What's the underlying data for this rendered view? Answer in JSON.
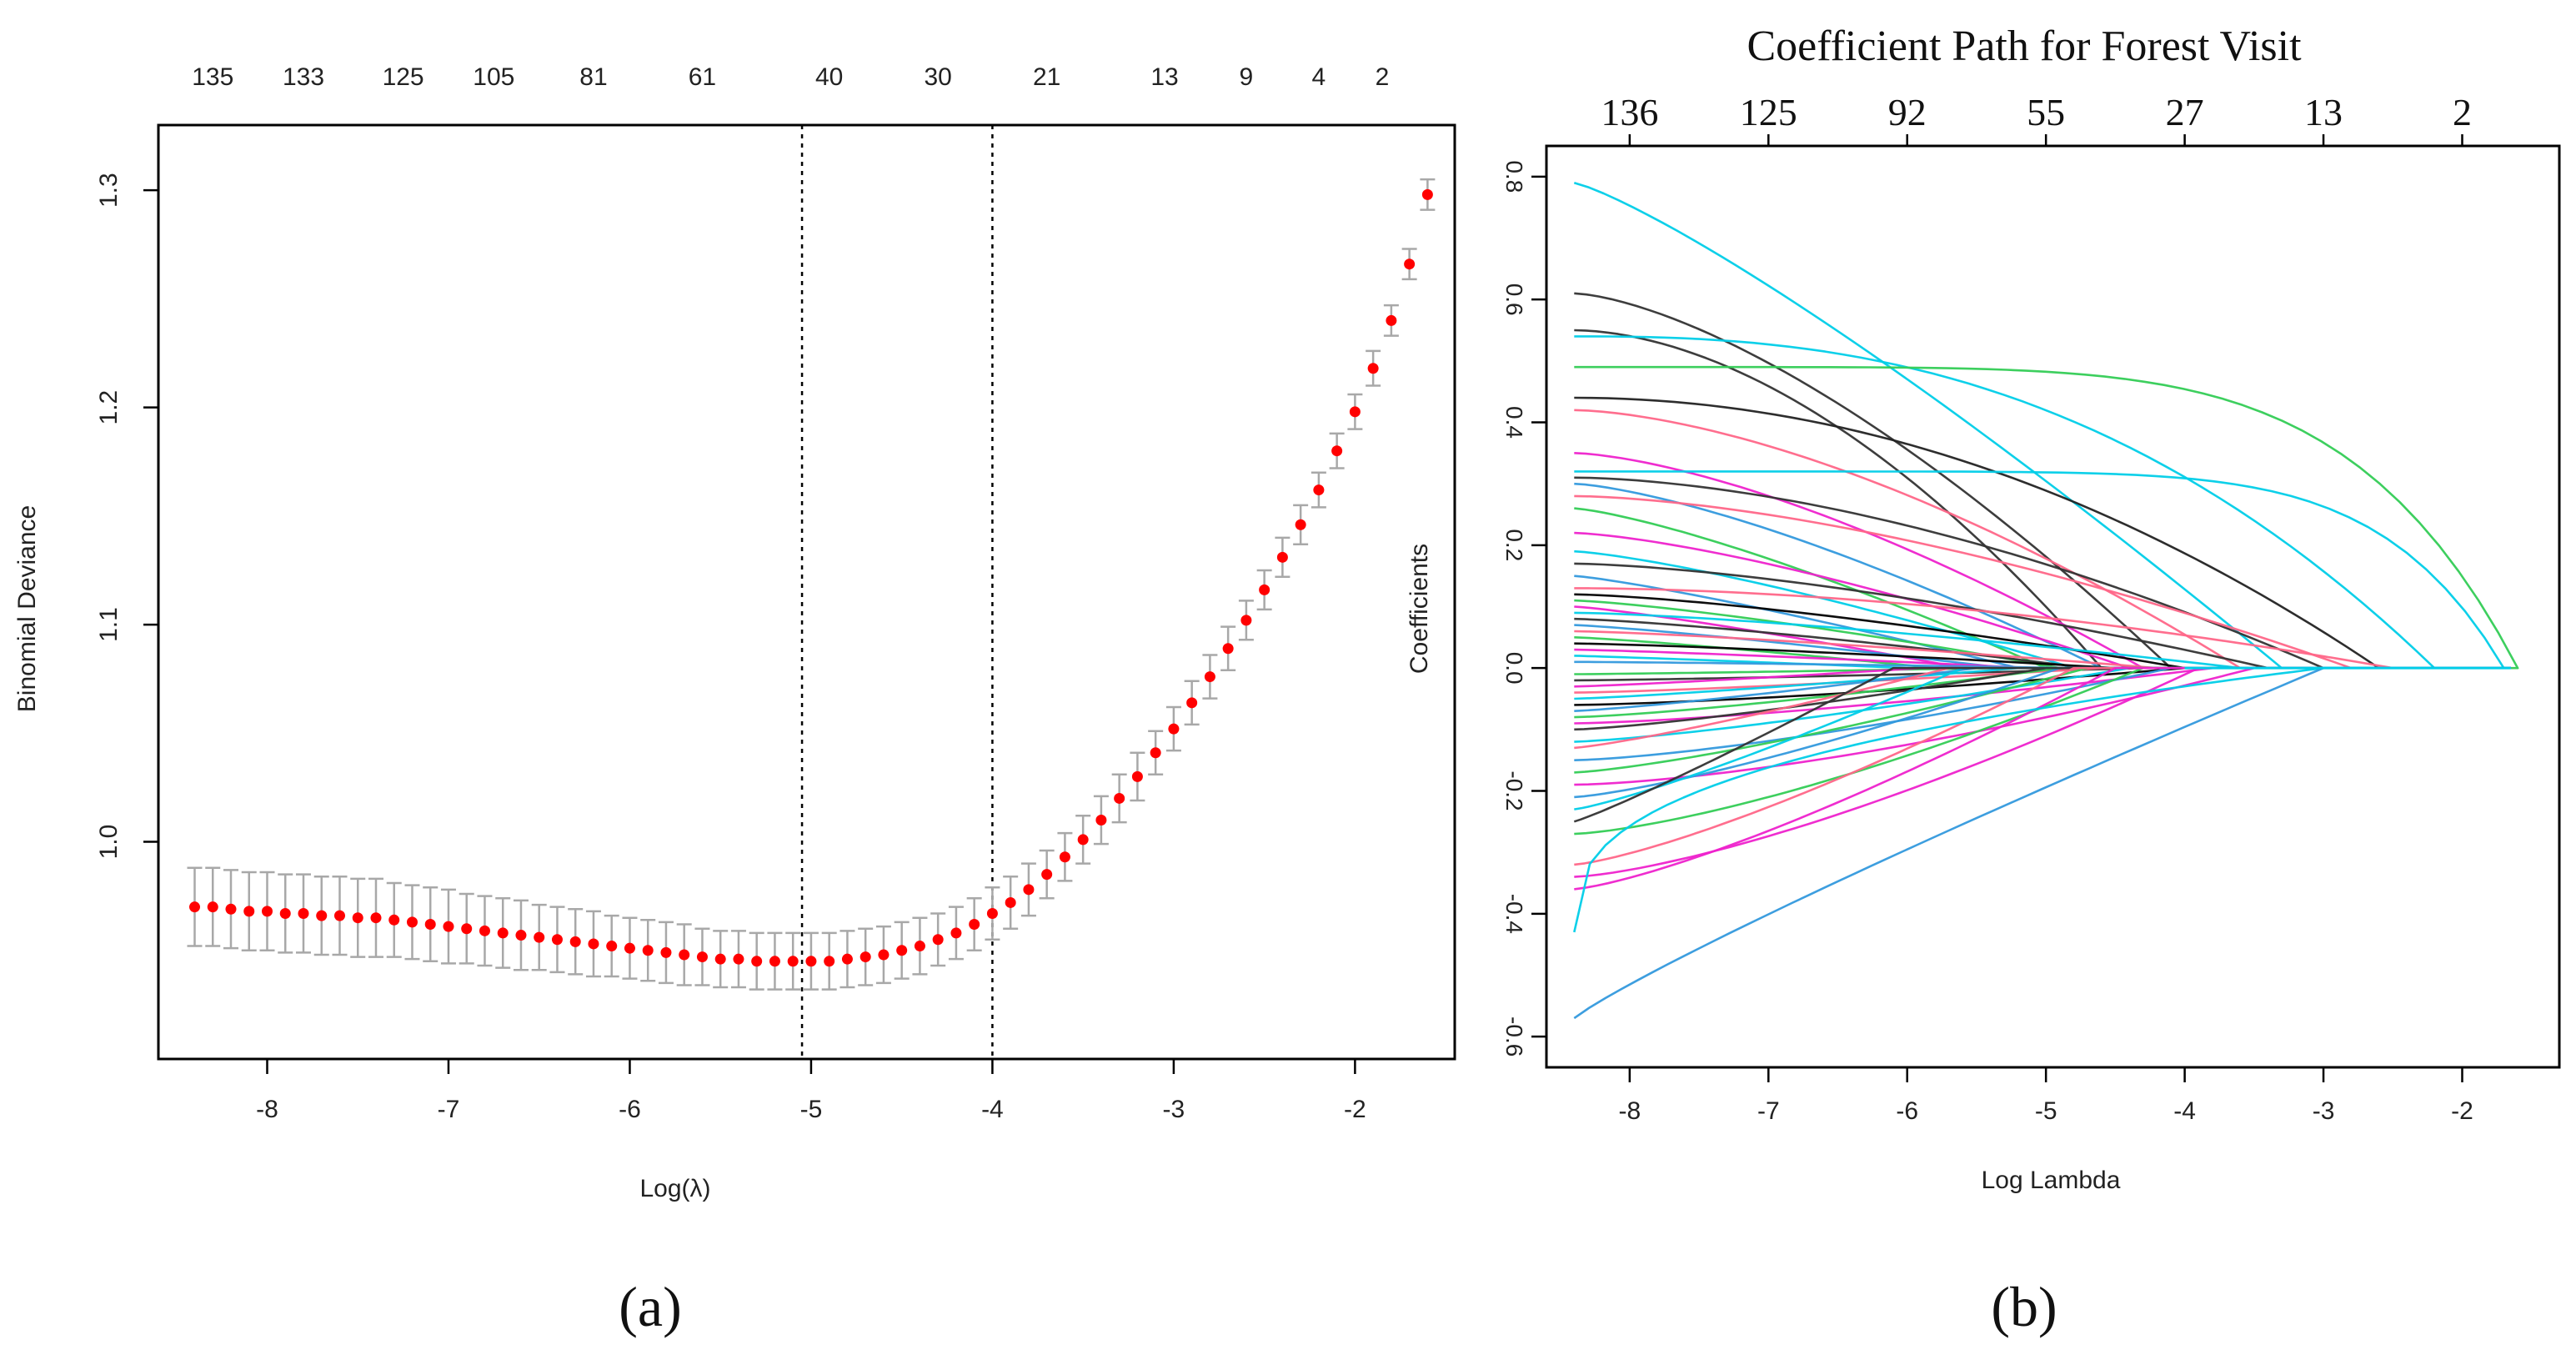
{
  "chart_data": [
    {
      "type": "scatter",
      "panel_label": "(a)",
      "title": "",
      "xlabel": "Log(λ)",
      "ylabel": "Binomial Deviance",
      "xlim": [
        -8.6,
        -1.45
      ],
      "ylim": [
        0.9,
        1.33
      ],
      "xticks": [
        -8,
        -7,
        -6,
        -5,
        -4,
        -3,
        -2
      ],
      "yticks": [
        1.0,
        1.1,
        1.2,
        1.3
      ],
      "ytick_labels": [
        "1.0",
        "1.1",
        "1.2",
        "1.3"
      ],
      "top_axis_labels": [
        "135",
        "133",
        "125",
        "105",
        "81",
        "61",
        "40",
        "30",
        "21",
        "13",
        "9",
        "4",
        "2"
      ],
      "top_axis_x": [
        -8.3,
        -7.8,
        -7.25,
        -6.75,
        -6.2,
        -5.6,
        -4.9,
        -4.3,
        -3.7,
        -3.05,
        -2.6,
        -2.2,
        -1.85
      ],
      "vlines": [
        -5.05,
        -4.0
      ],
      "series": [
        {
          "name": "cv-deviance",
          "x": [
            -8.4,
            -8.3,
            -8.2,
            -8.1,
            -8.0,
            -7.9,
            -7.8,
            -7.7,
            -7.6,
            -7.5,
            -7.4,
            -7.3,
            -7.2,
            -7.1,
            -7.0,
            -6.9,
            -6.8,
            -6.7,
            -6.6,
            -6.5,
            -6.4,
            -6.3,
            -6.2,
            -6.1,
            -6.0,
            -5.9,
            -5.8,
            -5.7,
            -5.6,
            -5.5,
            -5.4,
            -5.3,
            -5.2,
            -5.1,
            -5.0,
            -4.9,
            -4.8,
            -4.7,
            -4.6,
            -4.5,
            -4.4,
            -4.3,
            -4.2,
            -4.1,
            -4.0,
            -3.9,
            -3.8,
            -3.7,
            -3.6,
            -3.5,
            -3.4,
            -3.3,
            -3.2,
            -3.1,
            -3.0,
            -2.9,
            -2.8,
            -2.7,
            -2.6,
            -2.5,
            -2.4,
            -2.3,
            -2.2,
            -2.1,
            -2.0,
            -1.9,
            -1.8,
            -1.7,
            -1.6
          ],
          "y": [
            0.97,
            0.97,
            0.969,
            0.968,
            0.968,
            0.967,
            0.967,
            0.966,
            0.966,
            0.965,
            0.965,
            0.964,
            0.963,
            0.962,
            0.961,
            0.96,
            0.959,
            0.958,
            0.957,
            0.956,
            0.955,
            0.954,
            0.953,
            0.952,
            0.951,
            0.95,
            0.949,
            0.948,
            0.947,
            0.946,
            0.946,
            0.945,
            0.945,
            0.945,
            0.945,
            0.945,
            0.946,
            0.947,
            0.948,
            0.95,
            0.952,
            0.955,
            0.958,
            0.962,
            0.967,
            0.972,
            0.978,
            0.985,
            0.993,
            1.001,
            1.01,
            1.02,
            1.03,
            1.041,
            1.052,
            1.064,
            1.076,
            1.089,
            1.102,
            1.116,
            1.131,
            1.146,
            1.162,
            1.18,
            1.198,
            1.218,
            1.24,
            1.266,
            1.298
          ],
          "err": [
            0.018,
            0.018,
            0.018,
            0.018,
            0.018,
            0.018,
            0.018,
            0.018,
            0.018,
            0.018,
            0.018,
            0.017,
            0.017,
            0.017,
            0.017,
            0.016,
            0.016,
            0.016,
            0.016,
            0.015,
            0.015,
            0.015,
            0.015,
            0.014,
            0.014,
            0.014,
            0.014,
            0.014,
            0.013,
            0.013,
            0.013,
            0.013,
            0.013,
            0.013,
            0.013,
            0.013,
            0.013,
            0.013,
            0.013,
            0.013,
            0.013,
            0.012,
            0.012,
            0.012,
            0.012,
            0.012,
            0.012,
            0.011,
            0.011,
            0.011,
            0.011,
            0.011,
            0.011,
            0.01,
            0.01,
            0.01,
            0.01,
            0.01,
            0.009,
            0.009,
            0.009,
            0.009,
            0.008,
            0.008,
            0.008,
            0.008,
            0.007,
            0.007,
            0.007
          ],
          "color": "#ff0000",
          "errcolor": "#a8a8a8"
        }
      ]
    },
    {
      "type": "line",
      "panel_label": "(b)",
      "title": "Coefficient Path for Forest Visit",
      "xlabel": "Log Lambda",
      "ylabel": "Coefficients",
      "xlim": [
        -8.6,
        -1.3
      ],
      "ylim": [
        -0.65,
        0.85
      ],
      "xticks": [
        -8,
        -7,
        -6,
        -5,
        -4,
        -3,
        -2
      ],
      "yticks": [
        -0.6,
        -0.4,
        -0.2,
        0.0,
        0.2,
        0.4,
        0.6,
        0.8
      ],
      "ytick_labels": [
        "-0.6",
        "-0.4",
        "-0.2",
        "0.0",
        "0.2",
        "0.4",
        "0.6",
        "0.8"
      ],
      "top_axis_labels": [
        "136",
        "125",
        "92",
        "55",
        "27",
        "13",
        "2"
      ],
      "top_axis_x": [
        -8,
        -7,
        -6,
        -5,
        -4,
        -3,
        -2
      ],
      "x_start": -8.4,
      "series": [
        {
          "start": 0.79,
          "end": -3.3,
          "shape": 1.2,
          "color": "#00cde8"
        },
        {
          "start": 0.61,
          "end": -4.1,
          "shape": 1.5,
          "color": "#333333"
        },
        {
          "start": 0.55,
          "end": -4.6,
          "shape": 1.8,
          "color": "#333333"
        },
        {
          "start": 0.54,
          "end": -2.2,
          "shape": 2.5,
          "color": "#00cde8"
        },
        {
          "start": 0.49,
          "end": -1.6,
          "shape": 6.0,
          "color": "#33cc55"
        },
        {
          "start": 0.44,
          "end": -2.6,
          "shape": 2.0,
          "color": "#222222"
        },
        {
          "start": 0.42,
          "end": -3.6,
          "shape": 1.6,
          "color": "#ff6688"
        },
        {
          "start": 0.35,
          "end": -4.3,
          "shape": 1.5,
          "color": "#ee22cc"
        },
        {
          "start": 0.32,
          "end": -1.7,
          "shape": 8.0,
          "color": "#00cde8"
        },
        {
          "start": 0.31,
          "end": -3.0,
          "shape": 1.7,
          "color": "#333333"
        },
        {
          "start": 0.3,
          "end": -4.6,
          "shape": 1.4,
          "color": "#3399dd"
        },
        {
          "start": 0.28,
          "end": -2.8,
          "shape": 1.6,
          "color": "#ff6688"
        },
        {
          "start": 0.26,
          "end": -5.0,
          "shape": 1.3,
          "color": "#33cc55"
        },
        {
          "start": 0.22,
          "end": -4.4,
          "shape": 1.4,
          "color": "#ee22cc"
        },
        {
          "start": 0.19,
          "end": -4.8,
          "shape": 1.3,
          "color": "#00cde8"
        },
        {
          "start": 0.17,
          "end": -3.4,
          "shape": 1.5,
          "color": "#333333"
        },
        {
          "start": 0.15,
          "end": -5.2,
          "shape": 1.2,
          "color": "#3399dd"
        },
        {
          "start": 0.13,
          "end": -2.5,
          "shape": 1.8,
          "color": "#ff6688"
        },
        {
          "start": 0.12,
          "end": -4.0,
          "shape": 1.4,
          "color": "#000000"
        },
        {
          "start": 0.11,
          "end": -4.9,
          "shape": 1.3,
          "color": "#33cc55"
        },
        {
          "start": 0.1,
          "end": -5.6,
          "shape": 1.2,
          "color": "#ee22cc"
        },
        {
          "start": 0.09,
          "end": -3.6,
          "shape": 1.4,
          "color": "#00cde8"
        },
        {
          "start": 0.08,
          "end": -4.7,
          "shape": 1.3,
          "color": "#333333"
        },
        {
          "start": 0.07,
          "end": -5.3,
          "shape": 1.2,
          "color": "#3399dd"
        },
        {
          "start": 0.06,
          "end": -4.2,
          "shape": 1.3,
          "color": "#ff6688"
        },
        {
          "start": 0.05,
          "end": -5.8,
          "shape": 1.2,
          "color": "#33cc55"
        },
        {
          "start": 0.04,
          "end": -4.5,
          "shape": 1.3,
          "color": "#000000"
        },
        {
          "start": 0.03,
          "end": -5.1,
          "shape": 1.2,
          "color": "#ee22cc"
        },
        {
          "start": 0.02,
          "end": -6.0,
          "shape": 1.1,
          "color": "#00cde8"
        },
        {
          "start": 0.01,
          "end": -4.8,
          "shape": 1.3,
          "color": "#3399dd"
        },
        {
          "start": -0.01,
          "end": -5.4,
          "shape": 1.2,
          "color": "#33cc55"
        },
        {
          "start": -0.02,
          "end": -4.3,
          "shape": 1.3,
          "color": "#333333"
        },
        {
          "start": -0.03,
          "end": -5.9,
          "shape": 1.2,
          "color": "#ee22cc"
        },
        {
          "start": -0.04,
          "end": -4.6,
          "shape": 1.3,
          "color": "#ff6688"
        },
        {
          "start": -0.05,
          "end": -5.2,
          "shape": 1.2,
          "color": "#00cde8"
        },
        {
          "start": -0.06,
          "end": -4.0,
          "shape": 1.4,
          "color": "#000000"
        },
        {
          "start": -0.07,
          "end": -5.5,
          "shape": 1.2,
          "color": "#3399dd"
        },
        {
          "start": -0.08,
          "end": -4.9,
          "shape": 1.3,
          "color": "#33cc55"
        },
        {
          "start": -0.09,
          "end": -3.8,
          "shape": 1.4,
          "color": "#ee22cc"
        },
        {
          "start": -0.1,
          "end": -5.0,
          "shape": 1.3,
          "color": "#333333"
        },
        {
          "start": -0.12,
          "end": -4.4,
          "shape": 1.3,
          "color": "#00cde8"
        },
        {
          "start": -0.13,
          "end": -5.7,
          "shape": 1.2,
          "color": "#ff6688"
        },
        {
          "start": -0.15,
          "end": -4.1,
          "shape": 1.4,
          "color": "#3399dd"
        },
        {
          "start": -0.17,
          "end": -4.7,
          "shape": 1.3,
          "color": "#33cc55"
        },
        {
          "start": -0.19,
          "end": -3.5,
          "shape": 1.5,
          "color": "#ee22cc"
        },
        {
          "start": -0.21,
          "end": -4.9,
          "shape": 1.3,
          "color": "#3399dd"
        },
        {
          "start": -0.23,
          "end": -5.6,
          "shape": 1.2,
          "color": "#00cde8"
        },
        {
          "start": -0.25,
          "end": -6.1,
          "shape": 1.1,
          "color": "#333333"
        },
        {
          "start": -0.27,
          "end": -4.3,
          "shape": 1.4,
          "color": "#33cc55"
        },
        {
          "start": -0.32,
          "end": -4.8,
          "shape": 1.3,
          "color": "#ff6688"
        },
        {
          "start": -0.34,
          "end": -3.9,
          "shape": 1.4,
          "color": "#ee22cc"
        },
        {
          "start": -0.36,
          "end": -4.5,
          "shape": 1.3,
          "color": "#ee22cc"
        },
        {
          "start": -0.43,
          "end": -3.0,
          "shape": 0.35,
          "color": "#00cde8"
        },
        {
          "start": -0.57,
          "end": -3.0,
          "shape": 0.9,
          "color": "#3399dd"
        }
      ]
    }
  ]
}
